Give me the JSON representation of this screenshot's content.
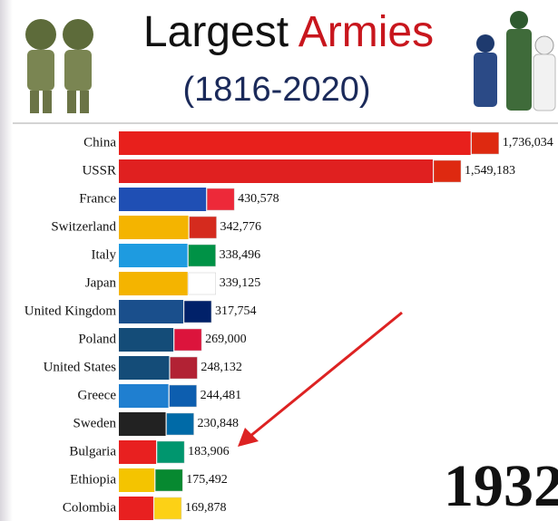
{
  "chart_data": {
    "type": "barh",
    "title": [
      "Largest",
      "Armies"
    ],
    "subtitle": "(1816-2020)",
    "year": "1932",
    "categories": [
      "China",
      "USSR",
      "France",
      "Switzerland",
      "Italy",
      "Japan",
      "United Kingdom",
      "Poland",
      "United States",
      "Greece",
      "Sweden",
      "Bulgaria",
      "Ethiopia",
      "Colombia"
    ],
    "values": [
      1736034,
      1549183,
      430578,
      342776,
      338496,
      339125,
      317754,
      269000,
      248132,
      244481,
      230848,
      183906,
      175492,
      169878
    ],
    "value_labels": [
      "1,736,034",
      "1,549,183",
      "430,578",
      "342,776",
      "338,496",
      "339,125",
      "317,754",
      "269,000",
      "248,132",
      "244,481",
      "230,848",
      "183,906",
      "175,492",
      "169,878"
    ],
    "colors": [
      "#e8201c",
      "#e02020",
      "#1f4fb4",
      "#f4b400",
      "#1e9be0",
      "#f4b400",
      "#1a4f8c",
      "#144c78",
      "#144c78",
      "#1f7fd0",
      "#222222",
      "#e82020",
      "#f4c400",
      "#e82020"
    ],
    "xlim": [
      0,
      1800000
    ]
  }
}
